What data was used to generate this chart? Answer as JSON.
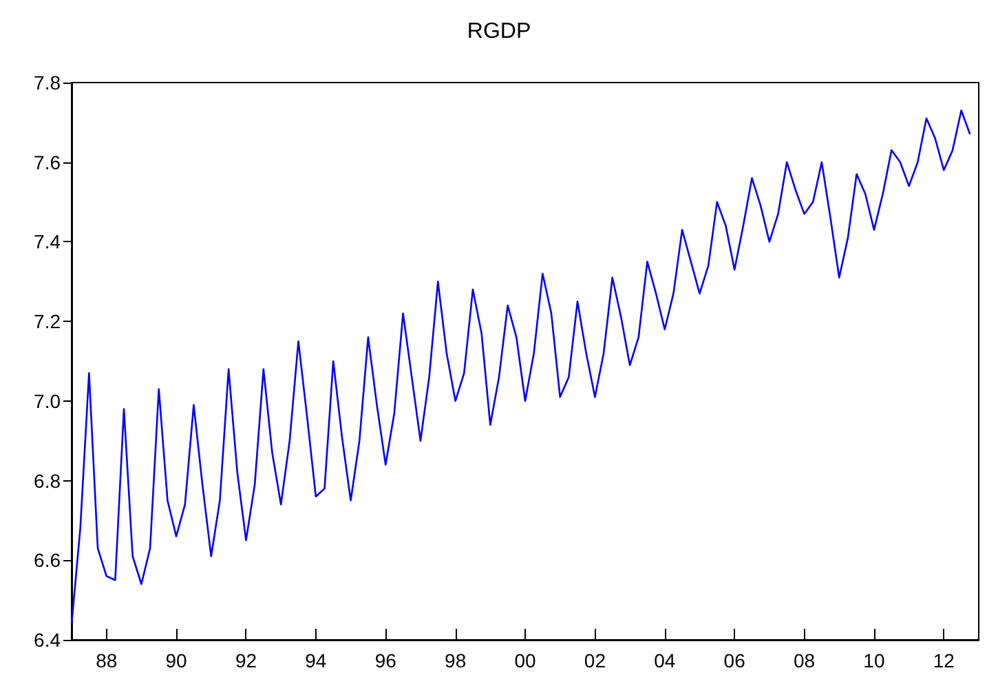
{
  "chart_data": {
    "type": "line",
    "title": "RGDP",
    "x": [
      1987,
      1987.25,
      1987.5,
      1987.75,
      1988,
      1988.25,
      1988.5,
      1988.75,
      1989,
      1989.25,
      1989.5,
      1989.75,
      1990,
      1990.25,
      1990.5,
      1990.75,
      1991,
      1991.25,
      1991.5,
      1991.75,
      1992,
      1992.25,
      1992.5,
      1992.75,
      1993,
      1993.25,
      1993.5,
      1993.75,
      1994,
      1994.25,
      1994.5,
      1994.75,
      1995,
      1995.25,
      1995.5,
      1995.75,
      1996,
      1996.25,
      1996.5,
      1996.75,
      1997,
      1997.25,
      1997.5,
      1997.75,
      1998,
      1998.25,
      1998.5,
      1998.75,
      1999,
      1999.25,
      1999.5,
      1999.75,
      2000,
      2000.25,
      2000.5,
      2000.75,
      2001,
      2001.25,
      2001.5,
      2001.75,
      2002,
      2002.25,
      2002.5,
      2002.75,
      2003,
      2003.25,
      2003.5,
      2003.75,
      2004,
      2004.25,
      2004.5,
      2004.75,
      2005,
      2005.25,
      2005.5,
      2005.75,
      2006,
      2006.25,
      2006.5,
      2006.75,
      2007,
      2007.25,
      2007.5,
      2007.75,
      2008,
      2008.25,
      2008.5,
      2008.75,
      2009,
      2009.25,
      2009.5,
      2009.75,
      2010,
      2010.25,
      2010.5,
      2010.75,
      2011,
      2011.25,
      2011.5,
      2011.75,
      2012,
      2012.25,
      2012.5,
      2012.75
    ],
    "values": [
      6.44,
      6.68,
      7.07,
      6.63,
      6.56,
      6.55,
      6.98,
      6.61,
      6.54,
      6.63,
      7.03,
      6.75,
      6.66,
      6.74,
      6.99,
      6.79,
      6.61,
      6.75,
      7.08,
      6.82,
      6.65,
      6.79,
      7.08,
      6.87,
      6.74,
      6.9,
      7.15,
      6.96,
      6.76,
      6.78,
      7.1,
      6.91,
      6.75,
      6.9,
      7.16,
      6.99,
      6.84,
      6.97,
      7.22,
      7.06,
      6.9,
      7.06,
      7.3,
      7.12,
      7.0,
      7.07,
      7.28,
      7.17,
      6.94,
      7.06,
      7.24,
      7.16,
      7.0,
      7.12,
      7.32,
      7.22,
      7.01,
      7.06,
      7.25,
      7.12,
      7.01,
      7.12,
      7.31,
      7.21,
      7.09,
      7.16,
      7.35,
      7.27,
      7.18,
      7.27,
      7.43,
      7.35,
      7.27,
      7.34,
      7.5,
      7.44,
      7.33,
      7.44,
      7.56,
      7.49,
      7.4,
      7.47,
      7.6,
      7.53,
      7.47,
      7.5,
      7.6,
      7.46,
      7.31,
      7.41,
      7.57,
      7.52,
      7.43,
      7.52,
      7.63,
      7.6,
      7.54,
      7.6,
      7.71,
      7.66,
      7.58,
      7.63,
      7.73,
      7.67
    ],
    "color": "#0000ff",
    "xlim": [
      1987,
      2013
    ],
    "xticks": [
      {
        "value": 1988,
        "label": "88"
      },
      {
        "value": 1990,
        "label": "90"
      },
      {
        "value": 1992,
        "label": "92"
      },
      {
        "value": 1994,
        "label": "94"
      },
      {
        "value": 1996,
        "label": "96"
      },
      {
        "value": 1998,
        "label": "98"
      },
      {
        "value": 2000,
        "label": "00"
      },
      {
        "value": 2002,
        "label": "02"
      },
      {
        "value": 2004,
        "label": "04"
      },
      {
        "value": 2006,
        "label": "06"
      },
      {
        "value": 2008,
        "label": "08"
      },
      {
        "value": 2010,
        "label": "10"
      },
      {
        "value": 2012,
        "label": "12"
      }
    ],
    "ylim": [
      6.4,
      7.8
    ],
    "yticks": [
      {
        "value": 6.4,
        "label": "6.4"
      },
      {
        "value": 6.6,
        "label": "6.6"
      },
      {
        "value": 6.8,
        "label": "6.8"
      },
      {
        "value": 7.0,
        "label": "7.0"
      },
      {
        "value": 7.2,
        "label": "7.2"
      },
      {
        "value": 7.4,
        "label": "7.4"
      },
      {
        "value": 7.6,
        "label": "7.6"
      },
      {
        "value": 7.8,
        "label": "7.8"
      }
    ],
    "grid": false
  }
}
